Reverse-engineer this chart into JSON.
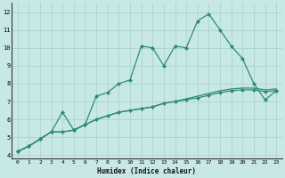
{
  "xlabel": "Humidex (Indice chaleur)",
  "x": [
    0,
    1,
    2,
    3,
    4,
    5,
    6,
    7,
    8,
    9,
    10,
    11,
    12,
    13,
    14,
    15,
    16,
    17,
    18,
    19,
    20,
    21,
    22,
    23
  ],
  "line1": [
    4.2,
    4.5,
    4.9,
    5.3,
    6.4,
    5.4,
    5.7,
    7.3,
    7.5,
    8.0,
    8.2,
    10.1,
    10.0,
    9.0,
    10.1,
    10.0,
    11.5,
    11.9,
    11.0,
    10.1,
    9.4,
    8.0,
    7.1,
    7.6
  ],
  "line2": [
    4.2,
    4.5,
    4.9,
    5.3,
    5.3,
    5.4,
    5.7,
    6.0,
    6.2,
    6.4,
    6.5,
    6.6,
    6.7,
    6.9,
    7.0,
    7.1,
    7.2,
    7.35,
    7.5,
    7.6,
    7.65,
    7.65,
    7.55,
    7.6
  ],
  "line3": [
    4.2,
    4.5,
    4.9,
    5.3,
    5.3,
    5.4,
    5.7,
    6.0,
    6.2,
    6.4,
    6.5,
    6.6,
    6.7,
    6.9,
    7.0,
    7.15,
    7.3,
    7.45,
    7.6,
    7.7,
    7.75,
    7.75,
    7.65,
    7.7
  ],
  "line_color": "#2e8b75",
  "bg_color": "#c8e8e5",
  "grid_color": "#aad4d0",
  "ylim": [
    3.8,
    12.5
  ],
  "xlim": [
    -0.5,
    23.5
  ],
  "yticks": [
    4,
    5,
    6,
    7,
    8,
    9,
    10,
    11,
    12
  ],
  "xticks": [
    0,
    1,
    2,
    3,
    4,
    5,
    6,
    7,
    8,
    9,
    10,
    11,
    12,
    13,
    14,
    15,
    16,
    17,
    18,
    19,
    20,
    21,
    22,
    23
  ]
}
